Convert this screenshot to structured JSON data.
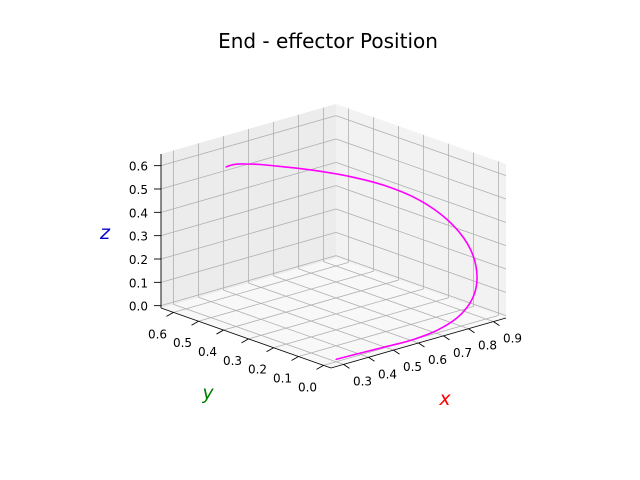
{
  "chart_data": {
    "type": "line",
    "projection": "3d",
    "title": "End - effector Position",
    "xlabel": "x",
    "ylabel": "y",
    "zlabel": "z",
    "xlim": [
      0.25,
      0.95
    ],
    "ylim": [
      -0.03,
      0.65
    ],
    "zlim": [
      -0.01,
      0.65
    ],
    "xticks": [
      "0.3",
      "0.4",
      "0.5",
      "0.6",
      "0.7",
      "0.8",
      "0.9"
    ],
    "yticks": [
      "0.0",
      "0.1",
      "0.2",
      "0.3",
      "0.4",
      "0.5",
      "0.6"
    ],
    "zticks": [
      "0.0",
      "0.1",
      "0.2",
      "0.3",
      "0.4",
      "0.5",
      "0.6"
    ],
    "grid": true,
    "series": [
      {
        "x": [
          0.3,
          0.386,
          0.489,
          0.6,
          0.71,
          0.811,
          0.893,
          0.948,
          0.975,
          0.969,
          0.932,
          0.867,
          0.782,
          0.69,
          0.6,
          0.522,
          0.461,
          0.422,
          0.402,
          0.4
        ],
        "y": [
          0.0,
          0.003,
          0.0,
          -0.005,
          -0.004,
          0.009,
          0.039,
          0.086,
          0.148,
          0.223,
          0.301,
          0.375,
          0.439,
          0.487,
          0.514,
          0.525,
          0.525,
          0.524,
          0.526,
          0.54
        ],
        "z": [
          0.0,
          -0.004,
          -0.006,
          -0.006,
          0.006,
          0.036,
          0.086,
          0.154,
          0.231,
          0.309,
          0.377,
          0.431,
          0.473,
          0.508,
          0.54,
          0.569,
          0.59,
          0.601,
          0.601,
          0.59
        ]
      }
    ]
  },
  "colors": {
    "line": "#ff00ff",
    "x_label": "#ff0000",
    "y_label": "#008000",
    "z_label": "#0000cc",
    "pane": "#f2f2f2",
    "grid": "#b0b0b0"
  }
}
